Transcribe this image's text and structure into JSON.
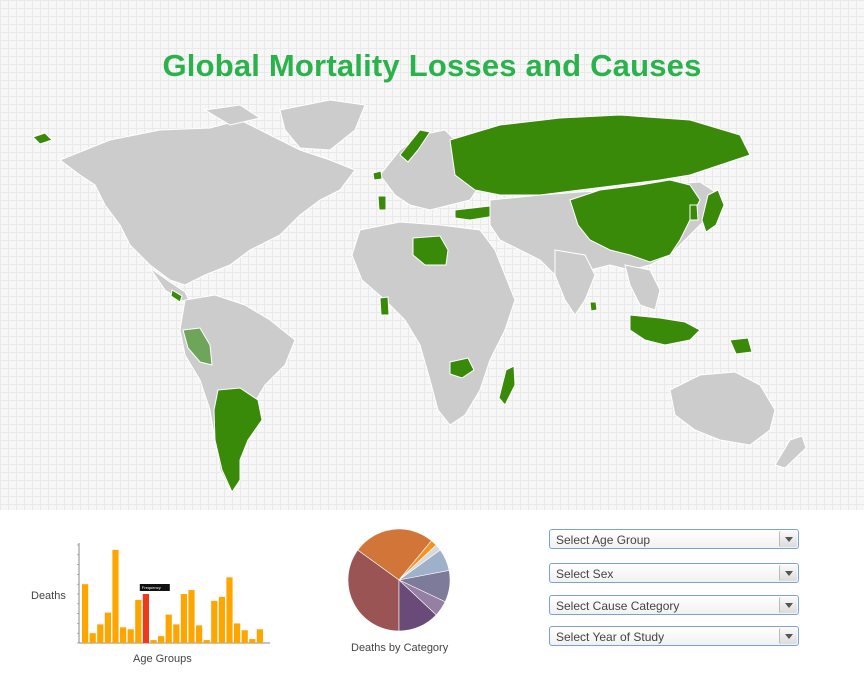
{
  "page": {
    "title": "Global Mortality Losses and Causes",
    "highlight_color": "#3a8a0a",
    "accent_color": "#2bb24c"
  },
  "bar_chart_panel": {
    "y_axis_label": "Deaths",
    "x_axis_label": "Age Groups",
    "tooltip_text": "Frequency"
  },
  "pie_chart_panel": {
    "caption": "Deaths by Category"
  },
  "filters": {
    "age_group": "Select Age Group",
    "sex": "Select Sex",
    "cause_category": "Select Cause Category",
    "year_of_study": "Select Year of Study"
  },
  "chart_data": [
    {
      "type": "bar",
      "title": "",
      "xlabel": "Age Groups",
      "ylabel": "Deaths",
      "values": [
        60,
        10,
        19,
        31,
        95,
        16,
        14,
        44,
        50,
        3,
        7,
        29,
        19,
        50,
        54,
        18,
        3,
        43,
        47,
        67,
        20,
        13,
        4,
        14
      ],
      "highlight_index": 8,
      "colors": {
        "bar": "#ffa500",
        "highlight": "#ee3a1a"
      }
    },
    {
      "type": "pie",
      "title": "",
      "caption": "Deaths by Category",
      "slices": [
        {
          "value": 35,
          "color": "#9a5454"
        },
        {
          "value": 26,
          "color": "#d27538"
        },
        {
          "value": 2,
          "color": "#f39326"
        },
        {
          "value": 2,
          "color": "#d9d9d9"
        },
        {
          "value": 7,
          "color": "#9fb0ca"
        },
        {
          "value": 10,
          "color": "#7e7b9a"
        },
        {
          "value": 5,
          "color": "#957fa2"
        },
        {
          "value": 13,
          "color": "#6a4a78"
        }
      ]
    }
  ]
}
